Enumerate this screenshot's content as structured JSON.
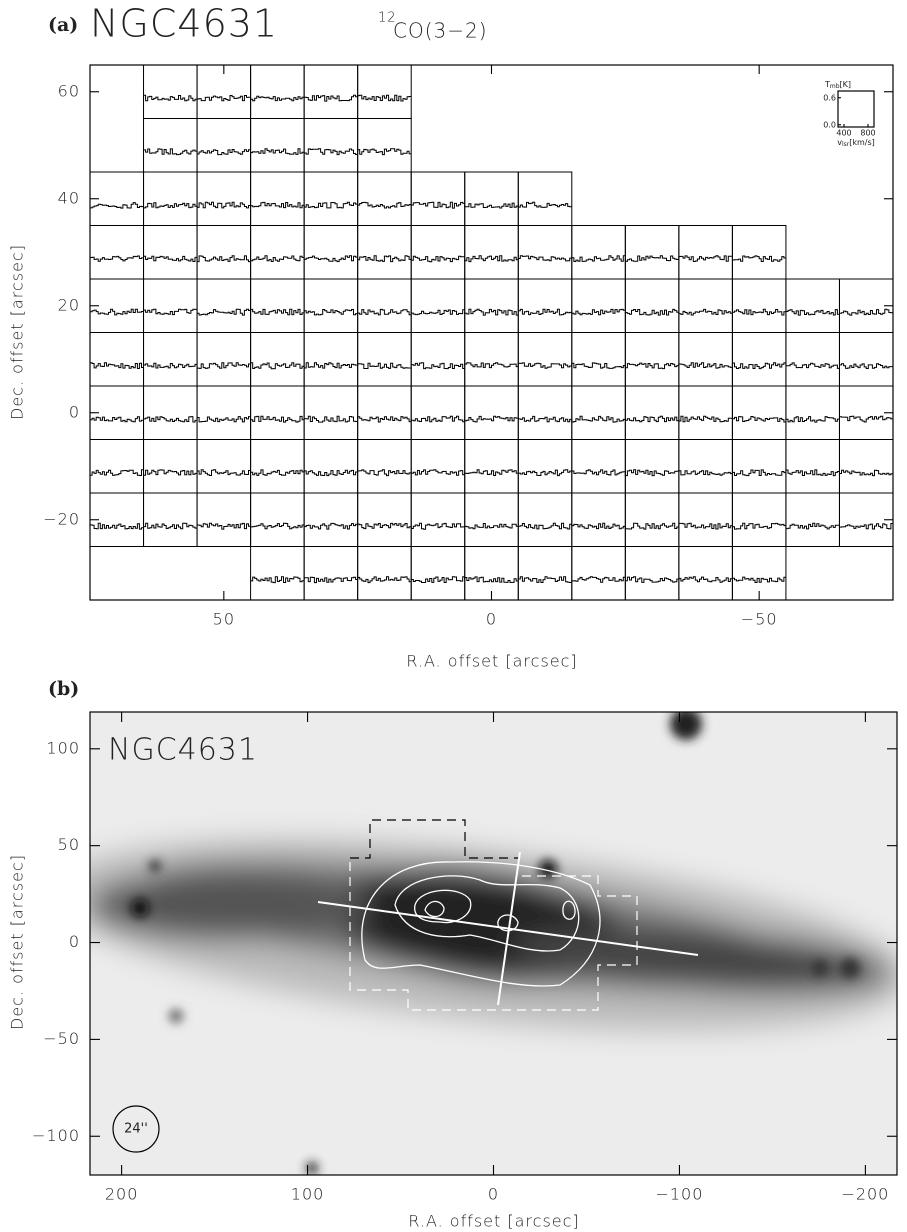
{
  "chart_data": [
    {
      "type": "spectra_grid",
      "panel_label": "(a)",
      "title": "NGC4631",
      "line_isotope": "12",
      "line_name": "CO(3−2)",
      "xlabel": "R.A. offset [arcsec]",
      "ylabel": "Dec. offset [arcsec]",
      "xlim": [
        75,
        -75
      ],
      "ylim": [
        -35,
        65
      ],
      "xticks": [
        50,
        0,
        {
          "value": -50,
          "label": "−50"
        }
      ],
      "yticks": [
        60,
        40,
        20,
        0,
        {
          "value": -20,
          "label": "−20"
        }
      ],
      "pointings": [
        {
          "dec": 60,
          "ra": [
            60,
            50,
            40,
            30,
            20
          ]
        },
        {
          "dec": 50,
          "ra": [
            60,
            50,
            40,
            30,
            20
          ]
        },
        {
          "dec": 40,
          "ra": [
            70,
            60,
            50,
            40,
            30,
            20,
            10,
            0,
            -10
          ]
        },
        {
          "dec": 30,
          "ra": [
            70,
            60,
            50,
            40,
            30,
            20,
            10,
            0,
            -10,
            -20,
            -30,
            -40,
            -50
          ]
        },
        {
          "dec": 20,
          "ra": [
            70,
            60,
            50,
            40,
            30,
            20,
            10,
            0,
            -10,
            -20,
            -30,
            -40,
            -50,
            -60,
            -70
          ]
        },
        {
          "dec": 10,
          "ra": [
            70,
            60,
            50,
            40,
            30,
            20,
            10,
            0,
            -10,
            -20,
            -30,
            -40,
            -50,
            -60,
            -70
          ]
        },
        {
          "dec": 0,
          "ra": [
            70,
            60,
            50,
            40,
            30,
            20,
            10,
            0,
            -10,
            -20,
            -30,
            -40,
            -50,
            -60,
            -70
          ]
        },
        {
          "dec": -10,
          "ra": [
            70,
            60,
            50,
            40,
            30,
            20,
            10,
            0,
            -10,
            -20,
            -30,
            -40,
            -50,
            -60,
            -70
          ]
        },
        {
          "dec": -20,
          "ra": [
            70,
            60,
            50,
            40,
            30,
            20,
            10,
            0,
            -10,
            -20,
            -30,
            -40,
            -50,
            -60,
            -70
          ]
        },
        {
          "dec": -30,
          "ra": [
            40,
            30,
            20,
            10,
            0,
            -10,
            -20,
            -30,
            -40,
            -50
          ]
        }
      ],
      "inset": {
        "ylabel_symbol": "T",
        "ylabel_sub": "mb",
        "ylabel_unit": "[K]",
        "xlabel_symbol": "v",
        "xlabel_sub": "lsr",
        "xlabel_unit": "[km/s]",
        "ylim": [
          -0.05,
          0.75
        ],
        "yticks": [
          0.6,
          {
            "value": 0,
            "label": "0.0"
          }
        ],
        "xlim": [
          300,
          900
        ],
        "xticks": [
          400,
          800
        ]
      }
    },
    {
      "type": "image",
      "panel_label": "(b)",
      "title": "NGC4631",
      "beam_label": "24''",
      "xlabel": "R.A. offset [arcsec]",
      "ylabel": "Dec. offset [arcsec]",
      "xlim": [
        217,
        -217
      ],
      "ylim": [
        -120,
        119
      ],
      "xticks": [
        200,
        100,
        0,
        {
          "value": -100,
          "label": "−100"
        },
        {
          "value": -200,
          "label": "−200"
        }
      ],
      "yticks": [
        100,
        50,
        0,
        {
          "value": -50,
          "label": "−50"
        },
        {
          "value": -100,
          "label": "−100"
        }
      ]
    }
  ]
}
